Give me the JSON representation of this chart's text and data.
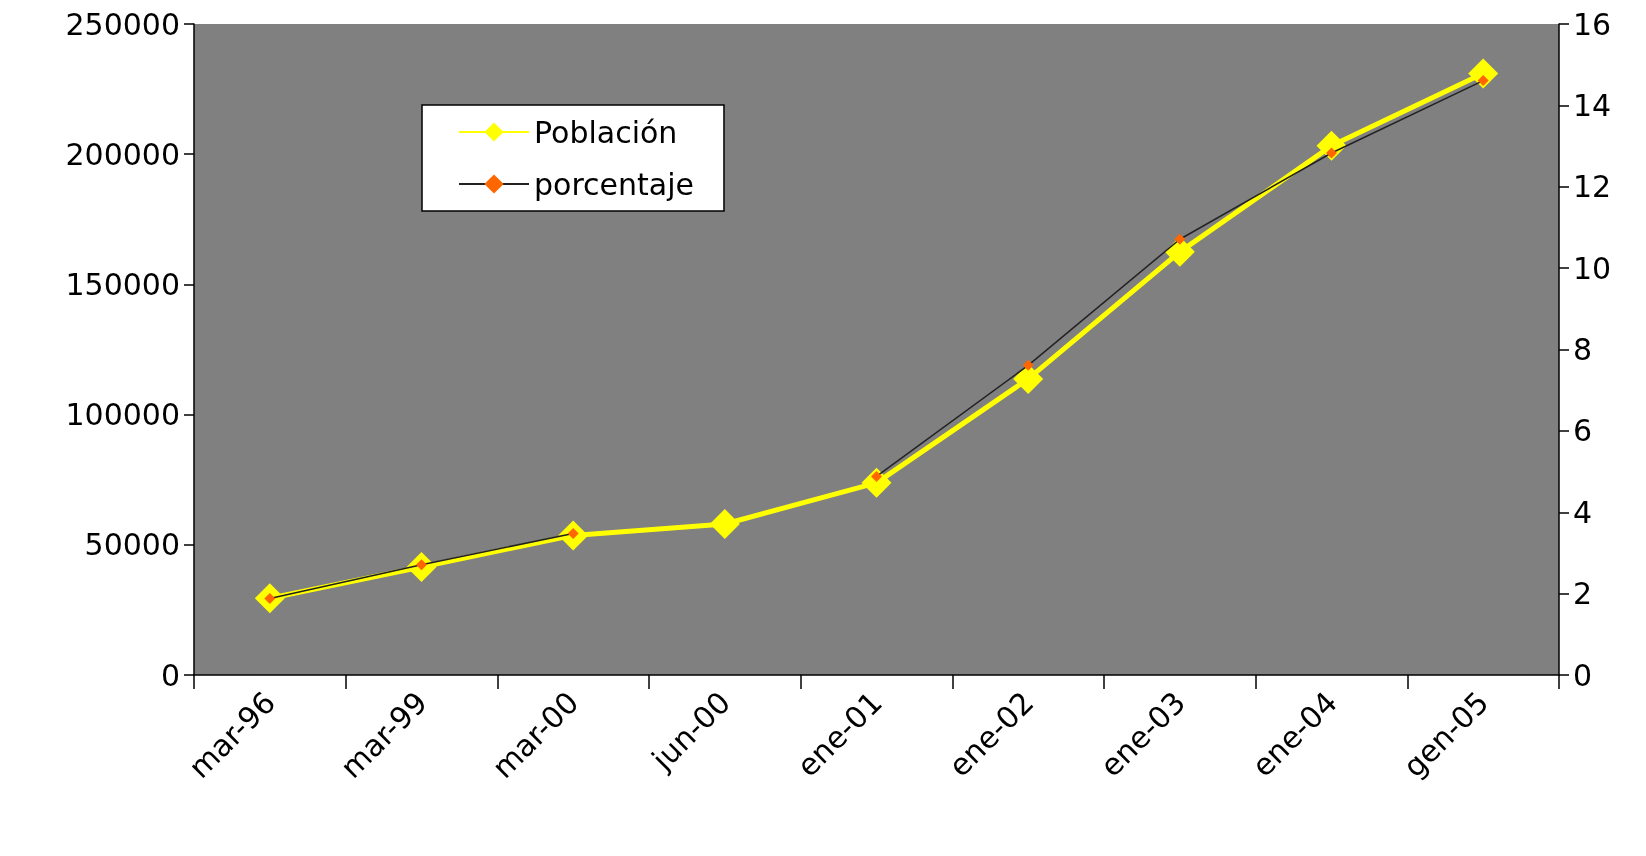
{
  "chart_data": {
    "type": "line",
    "categories": [
      "mar-96",
      "mar-99",
      "mar-00",
      "jun-00",
      "ene-01",
      "ene-02",
      "ene-03",
      "ene-04",
      "gen-05"
    ],
    "series": [
      {
        "name": "Población",
        "color": "#ffff00",
        "values": [
          29500,
          41500,
          53600,
          58000,
          73800,
          113700,
          162500,
          203200,
          231000
        ]
      },
      {
        "name": "porcentaje",
        "color": "#ff6600",
        "axis": "y2",
        "values": [
          1.88,
          2.71,
          3.48,
          null,
          4.88,
          7.61,
          10.71,
          12.83,
          14.61
        ]
      }
    ],
    "ylim": [
      0,
      250000
    ],
    "yticks": [
      0,
      50000,
      100000,
      150000,
      200000,
      250000
    ],
    "y2lim": [
      0,
      16
    ],
    "y2ticks": [
      0,
      2,
      4,
      6,
      8,
      10,
      12,
      14,
      16
    ],
    "marker": "diamond",
    "grid": false,
    "legend": "top left"
  }
}
